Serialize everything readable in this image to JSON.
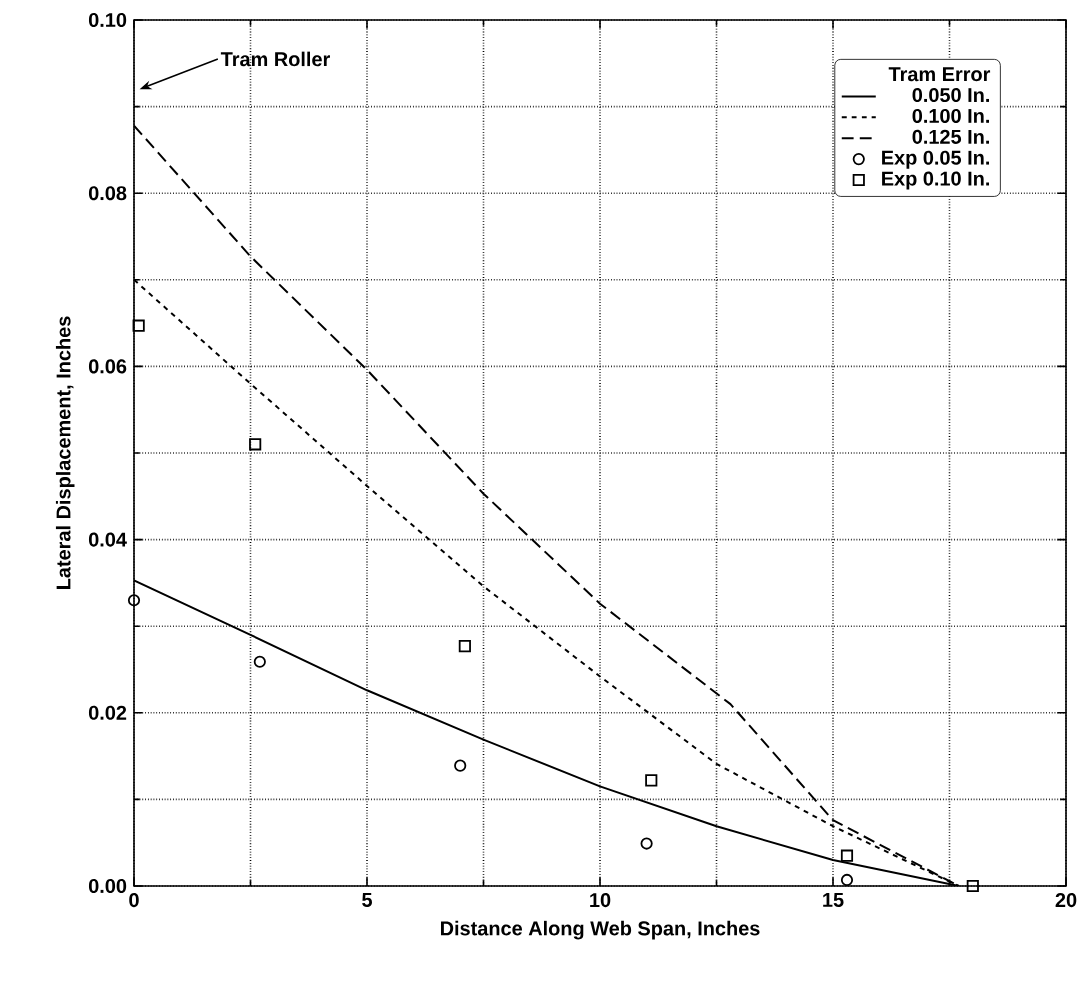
{
  "chart_data": {
    "type": "line",
    "xlabel": "Distance Along  Web Span, Inches",
    "ylabel": "Lateral Displacement, Inches",
    "legend_title": "Tram Error",
    "xlim": [
      0,
      20
    ],
    "ylim": [
      0,
      0.1
    ],
    "xticks": [
      0,
      5,
      10,
      15,
      20
    ],
    "yticks": [
      {
        "value": 0,
        "label": "0.00"
      },
      {
        "value": 0.02,
        "label": "0.02"
      },
      {
        "value": 0.04,
        "label": "0.04"
      },
      {
        "value": 0.06,
        "label": "0.06"
      },
      {
        "value": 0.08,
        "label": "0.08"
      },
      {
        "value": 0.1,
        "label": "0.10"
      }
    ],
    "grid": true,
    "legend": "top right",
    "annotations": [
      "Tram Roller"
    ],
    "series": [
      {
        "name": "0.050 In.",
        "color": "#000000",
        "line_style": "solid",
        "marker": "none",
        "x": [
          0,
          2.5,
          5,
          7.5,
          10,
          12.5,
          15,
          17.7
        ],
        "values": [
          0.0353,
          0.029,
          0.0226,
          0.0169,
          0.0115,
          0.0069,
          0.003,
          0
        ]
      },
      {
        "name": "0.100 In.",
        "color": "#000000",
        "line_style": "dotted",
        "marker": "none",
        "x": [
          0,
          2.5,
          5,
          7.5,
          10,
          12.5,
          15,
          17.7
        ],
        "values": [
          0.07,
          0.058,
          0.0462,
          0.0346,
          0.0242,
          0.0141,
          0.0069,
          0
        ]
      },
      {
        "name": "0.125 In.",
        "color": "#000000",
        "line_style": "dashed",
        "marker": "none",
        "x": [
          0,
          2.5,
          5,
          7.5,
          10,
          12.8,
          15,
          17.7
        ],
        "values": [
          0.0878,
          0.0727,
          0.0596,
          0.0453,
          0.0326,
          0.021,
          0.0076,
          0
        ]
      },
      {
        "name": "Exp 0.05 In.",
        "type": "scatter",
        "color": "#000000",
        "marker": "circle",
        "x": [
          0,
          2.7,
          7.0,
          11.0,
          15.3
        ],
        "values": [
          0.033,
          0.0259,
          0.0139,
          0.0049,
          0.0007
        ]
      },
      {
        "name": "Exp 0.10 In.",
        "type": "scatter",
        "color": "#000000",
        "marker": "square",
        "x": [
          0.1,
          2.6,
          7.1,
          11.1,
          15.3,
          18.0
        ],
        "values": [
          0.0647,
          0.051,
          0.0277,
          0.0122,
          0.0035,
          0
        ]
      }
    ]
  }
}
